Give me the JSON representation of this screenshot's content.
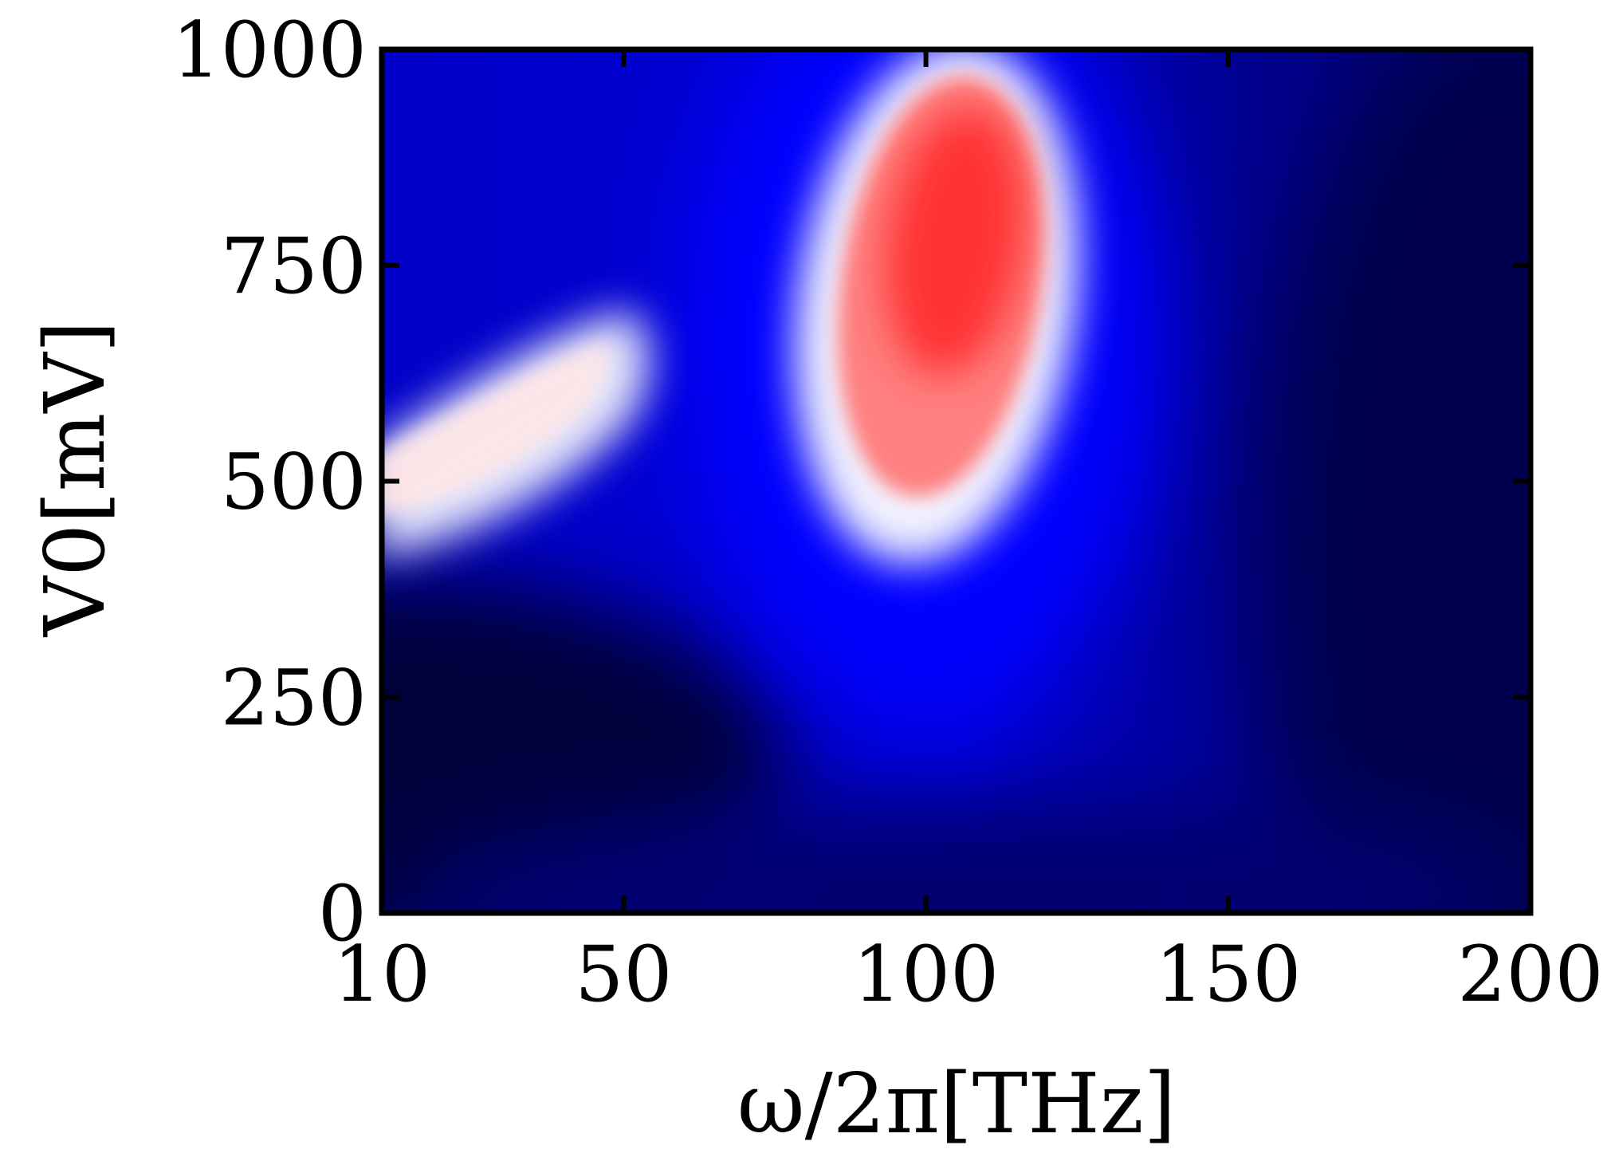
{
  "chart_data": {
    "type": "heatmap",
    "title": "",
    "xlabel": "ω/2π[THz]",
    "ylabel": "V0[mV]",
    "x_ticks": [
      10,
      50,
      100,
      150,
      200
    ],
    "y_ticks": [
      0,
      250,
      500,
      750,
      1000
    ],
    "xlim": [
      10,
      200
    ],
    "ylim": [
      0,
      1000
    ],
    "colormap": [
      "#000033",
      "#0000ff",
      "#ffffff",
      "#ff0000"
    ],
    "features": [
      {
        "x": 103,
        "y": 800,
        "level": "high"
      },
      {
        "x": 25,
        "y": 540,
        "level": "medium"
      },
      {
        "x": 10,
        "y": 150,
        "level": "low"
      },
      {
        "x": 200,
        "y": 700,
        "level": "low"
      }
    ],
    "grid": false,
    "legend": "none"
  }
}
